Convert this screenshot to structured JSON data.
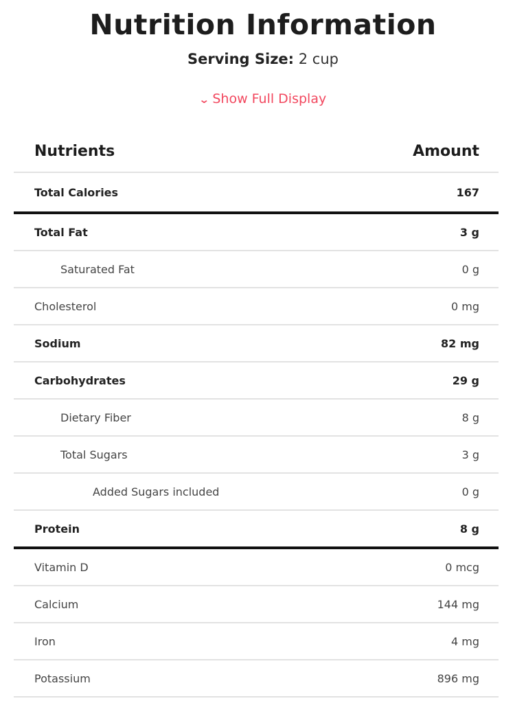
{
  "title": "Nutrition Information",
  "serving": {
    "label": "Serving Size:",
    "value": "2 cup"
  },
  "toggle": {
    "label": "Show Full Display",
    "icon": "chevron-down-icon",
    "color": "#f2475e"
  },
  "table": {
    "headers": {
      "nutrient": "Nutrients",
      "amount": "Amount"
    },
    "rows": [
      {
        "name": "Total Calories",
        "amount": "167",
        "bold": true,
        "indent": 0,
        "section_end": true
      },
      {
        "name": "Total Fat",
        "amount": "3 g",
        "bold": true,
        "indent": 0
      },
      {
        "name": "Saturated Fat",
        "amount": "0 g",
        "bold": false,
        "indent": 1
      },
      {
        "name": "Cholesterol",
        "amount": "0 mg",
        "bold": false,
        "indent": 0
      },
      {
        "name": "Sodium",
        "amount": "82 mg",
        "bold": true,
        "indent": 0
      },
      {
        "name": "Carbohydrates",
        "amount": "29 g",
        "bold": true,
        "indent": 0
      },
      {
        "name": "Dietary Fiber",
        "amount": "8 g",
        "bold": false,
        "indent": 1
      },
      {
        "name": "Total Sugars",
        "amount": "3 g",
        "bold": false,
        "indent": 1
      },
      {
        "name": "Added Sugars included",
        "amount": "0 g",
        "bold": false,
        "indent": 2
      },
      {
        "name": "Protein",
        "amount": "8 g",
        "bold": true,
        "indent": 0,
        "section_end": true
      },
      {
        "name": "Vitamin D",
        "amount": "0 mcg",
        "bold": false,
        "indent": 0
      },
      {
        "name": "Calcium",
        "amount": "144 mg",
        "bold": false,
        "indent": 0
      },
      {
        "name": "Iron",
        "amount": "4 mg",
        "bold": false,
        "indent": 0
      },
      {
        "name": "Potassium",
        "amount": "896 mg",
        "bold": false,
        "indent": 0
      }
    ]
  }
}
